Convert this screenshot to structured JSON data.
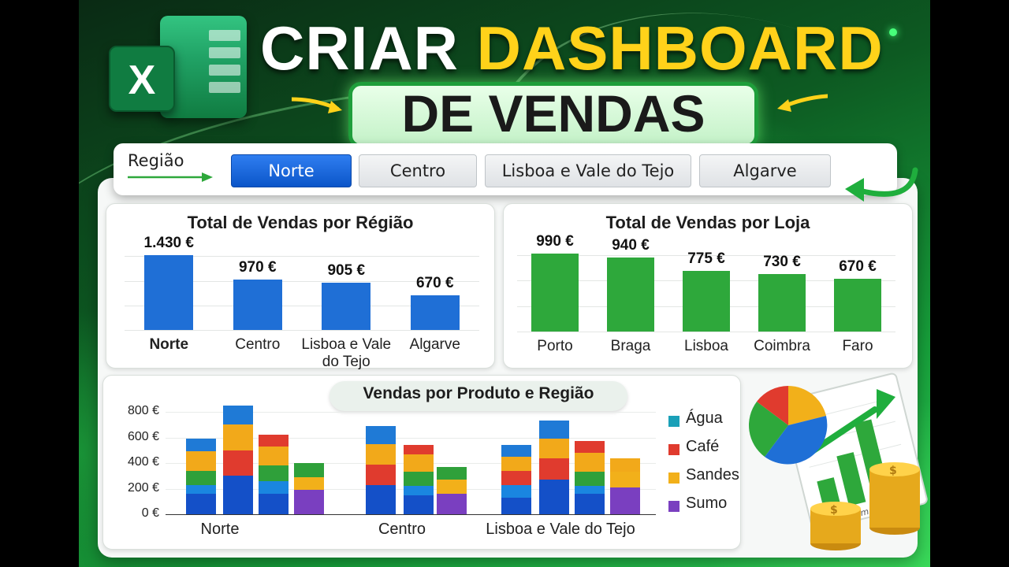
{
  "header": {
    "title_line1_part1": "CRIAR",
    "title_line1_part2": "DASHBOARD",
    "title_line2": "DE VENDAS",
    "logo_letter": "X",
    "accent_color": "#ffd21a",
    "brand_color": "#107c41"
  },
  "filter": {
    "label": "Região",
    "options": [
      "Norte",
      "Centro",
      "Lisboa e Vale do Tejo",
      "Algarve"
    ],
    "selected": "Norte"
  },
  "chart_data": [
    {
      "type": "bar",
      "title": "Total de Vendas por Régião",
      "categories": [
        "Norte",
        "Centro",
        "Lisboa e Vale do Tejo",
        "Algarve"
      ],
      "values": [
        1430,
        970,
        905,
        670
      ],
      "value_labels": [
        "1.430 €",
        "970 €",
        "905 €",
        "670 €"
      ],
      "color": "#1f6fd6",
      "ylim": [
        0,
        1600
      ]
    },
    {
      "type": "bar",
      "title": "Total de Vendas  por Loja",
      "categories": [
        "Porto",
        "Braga",
        "Lisboa",
        "Coimbra",
        "Faro"
      ],
      "values": [
        990,
        940,
        775,
        730,
        670
      ],
      "value_labels": [
        "990 €",
        "940 €",
        "775 €",
        "730 €",
        "670 €"
      ],
      "color": "#2ea83b",
      "ylim": [
        0,
        1100
      ]
    },
    {
      "type": "bar",
      "stacked": true,
      "title": "Vendas por Produto e Região",
      "groups": [
        "Norte",
        "Centro",
        "Lisboa e Vale do Tejo"
      ],
      "yticks": [
        "800 €",
        "600 €",
        "400 €",
        "200 €",
        "0 €"
      ],
      "ylim": [
        0,
        800
      ],
      "stack_order": [
        "base",
        "Água",
        "Café",
        "Sandes",
        "Sumo"
      ],
      "legend": [
        {
          "name": "Água",
          "color": "#1aa0b8"
        },
        {
          "name": "Café",
          "color": "#e03b2e"
        },
        {
          "name": "Sandes",
          "color": "#f2b01a"
        },
        {
          "name": "Sumo",
          "color": "#7a3fc0"
        }
      ],
      "bars": [
        {
          "group": 0,
          "segments": [
            {
              "c": "#1450c8",
              "v": 160
            },
            {
              "c": "#1a86e0",
              "v": 70
            },
            {
              "c": "#2fa03a",
              "v": 110
            },
            {
              "c": "#f2a91a",
              "v": 150
            },
            {
              "c": "#1f7ad6",
              "v": 100
            }
          ]
        },
        {
          "group": 0,
          "segments": [
            {
              "c": "#1450c8",
              "v": 300
            },
            {
              "c": "#e03b2e",
              "v": 200
            },
            {
              "c": "#f2a91a",
              "v": 200
            },
            {
              "c": "#1f7ad6",
              "v": 150
            }
          ]
        },
        {
          "group": 0,
          "segments": [
            {
              "c": "#1450c8",
              "v": 160
            },
            {
              "c": "#1a86e0",
              "v": 100
            },
            {
              "c": "#2fa03a",
              "v": 120
            },
            {
              "c": "#f2a91a",
              "v": 150
            },
            {
              "c": "#e03b2e",
              "v": 90
            }
          ]
        },
        {
          "group": 0,
          "segments": [
            {
              "c": "#7a3fc0",
              "v": 190
            },
            {
              "c": "#f2b01a",
              "v": 100
            },
            {
              "c": "#2fa03a",
              "v": 110
            }
          ]
        },
        {
          "group": 1,
          "segments": [
            {
              "c": "#1450c8",
              "v": 230
            },
            {
              "c": "#e03b2e",
              "v": 160
            },
            {
              "c": "#f2a91a",
              "v": 160
            },
            {
              "c": "#1f7ad6",
              "v": 140
            }
          ]
        },
        {
          "group": 1,
          "segments": [
            {
              "c": "#1450c8",
              "v": 150
            },
            {
              "c": "#1a86e0",
              "v": 70
            },
            {
              "c": "#2fa03a",
              "v": 110
            },
            {
              "c": "#f2a91a",
              "v": 140
            },
            {
              "c": "#e03b2e",
              "v": 70
            }
          ]
        },
        {
          "group": 1,
          "segments": [
            {
              "c": "#7a3fc0",
              "v": 160
            },
            {
              "c": "#f2b01a",
              "v": 110
            },
            {
              "c": "#2fa03a",
              "v": 100
            }
          ]
        },
        {
          "group": 2,
          "segments": [
            {
              "c": "#1450c8",
              "v": 130
            },
            {
              "c": "#1a86e0",
              "v": 100
            },
            {
              "c": "#e03b2e",
              "v": 110
            },
            {
              "c": "#f2a91a",
              "v": 110
            },
            {
              "c": "#1f7ad6",
              "v": 90
            }
          ]
        },
        {
          "group": 2,
          "segments": [
            {
              "c": "#1450c8",
              "v": 270
            },
            {
              "c": "#e03b2e",
              "v": 170
            },
            {
              "c": "#f2a91a",
              "v": 150
            },
            {
              "c": "#1f7ad6",
              "v": 140
            }
          ]
        },
        {
          "group": 2,
          "segments": [
            {
              "c": "#1450c8",
              "v": 160
            },
            {
              "c": "#1a86e0",
              "v": 60
            },
            {
              "c": "#2fa03a",
              "v": 110
            },
            {
              "c": "#f2a91a",
              "v": 150
            },
            {
              "c": "#e03b2e",
              "v": 90
            }
          ]
        },
        {
          "group": 2,
          "segments": [
            {
              "c": "#7a3fc0",
              "v": 210
            },
            {
              "c": "#f2b01a",
              "v": 120
            },
            {
              "c": "#f2a91a",
              "v": 110
            }
          ]
        }
      ]
    }
  ],
  "decoration": {
    "axis_labels": [
      "13m",
      "23m"
    ],
    "icons": [
      "pie-chart-icon",
      "bar-chart-icon",
      "trend-arrow-icon",
      "coin-stack-icon"
    ]
  }
}
